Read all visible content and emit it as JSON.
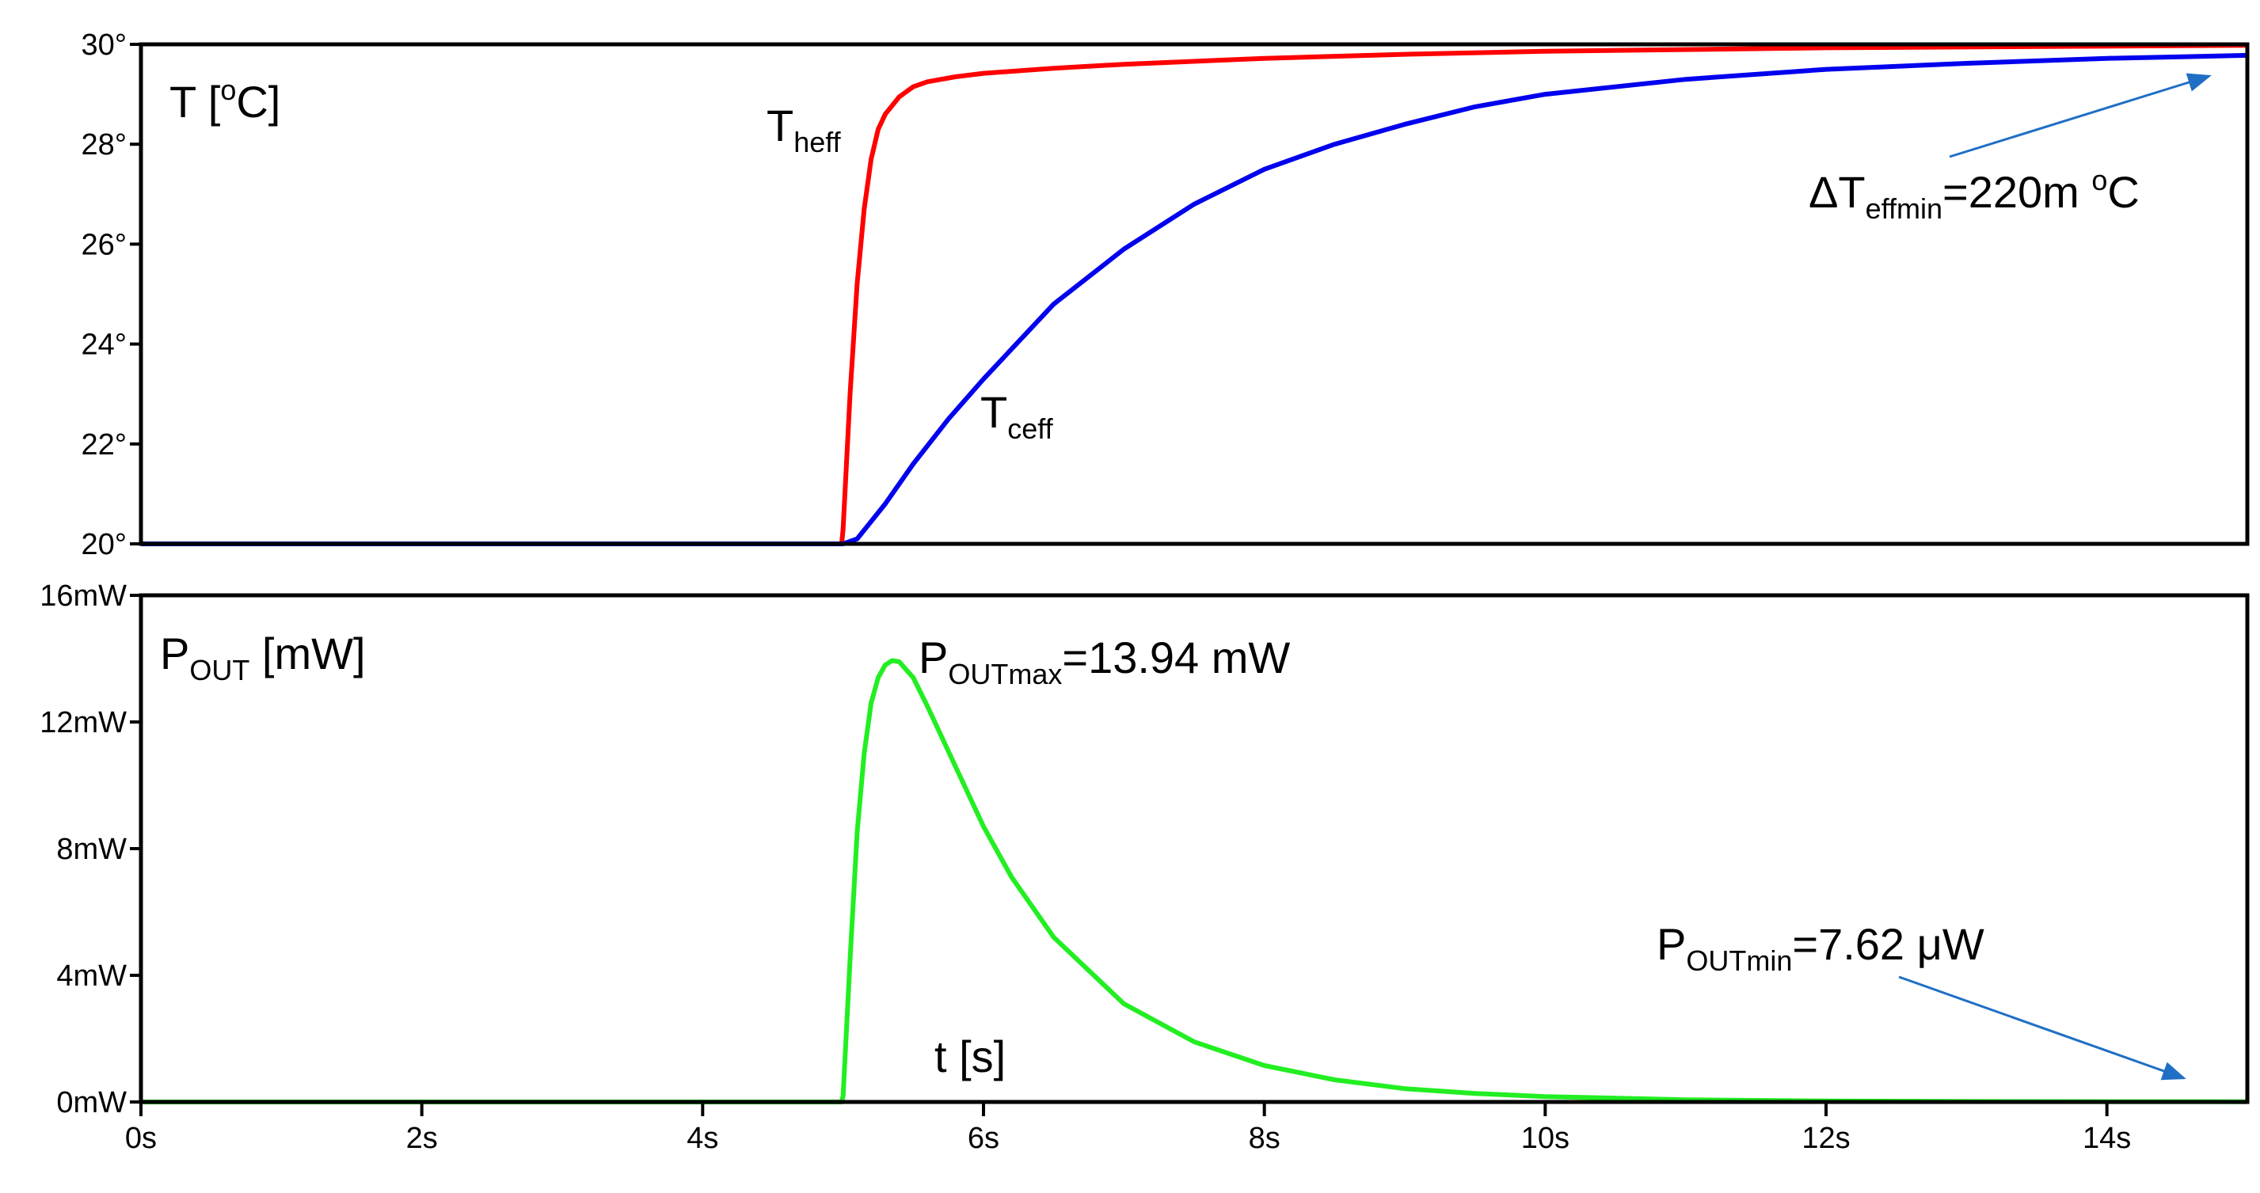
{
  "chart_data": [
    {
      "type": "line",
      "panel": "top",
      "ylabel_main": "T [",
      "ylabel_sup": "o",
      "ylabel_end": "C]",
      "ylim": [
        20,
        30
      ],
      "xlim": [
        0,
        15
      ],
      "y_ticks": [
        20,
        22,
        24,
        26,
        28,
        30
      ],
      "y_tick_labels": [
        "20°",
        "22°",
        "24°",
        "26°",
        "28°",
        "30°"
      ],
      "series": [
        {
          "name": "Theff",
          "label_main": "T",
          "label_sub": "heff",
          "color": "#ff0000",
          "x": [
            0,
            4.99,
            5.0,
            5.05,
            5.1,
            5.15,
            5.2,
            5.25,
            5.3,
            5.4,
            5.5,
            5.6,
            5.8,
            6.0,
            6.5,
            7.0,
            8.0,
            9.0,
            10.0,
            12.0,
            15.0
          ],
          "y": [
            20,
            20,
            20.3,
            23.0,
            25.2,
            26.7,
            27.7,
            28.3,
            28.6,
            28.95,
            29.15,
            29.25,
            29.35,
            29.42,
            29.52,
            29.6,
            29.72,
            29.8,
            29.86,
            29.93,
            29.98
          ]
        },
        {
          "name": "Tceff",
          "label_main": "T",
          "label_sub": "ceff",
          "color": "#0000ee",
          "x": [
            0,
            5.0,
            5.1,
            5.3,
            5.5,
            5.75,
            6.0,
            6.5,
            7.0,
            7.5,
            8.0,
            8.5,
            9.0,
            9.5,
            10.0,
            11.0,
            12.0,
            13.0,
            14.0,
            15.0
          ],
          "y": [
            20,
            20,
            20.1,
            20.8,
            21.6,
            22.5,
            23.3,
            24.8,
            25.9,
            26.8,
            27.5,
            28.0,
            28.4,
            28.75,
            29.0,
            29.3,
            29.5,
            29.62,
            29.72,
            29.78
          ]
        }
      ],
      "annotations": [
        {
          "main": "ΔT",
          "sub": "effmin",
          "end": "=220m ",
          "sup": "o",
          "tail": "C"
        }
      ]
    },
    {
      "type": "line",
      "panel": "bottom",
      "ylabel_main": "P",
      "ylabel_sub": "OUT",
      "ylabel_end": " [mW]",
      "ylim": [
        0,
        16
      ],
      "xlim": [
        0,
        15
      ],
      "y_ticks": [
        0,
        4,
        8,
        12,
        16
      ],
      "y_tick_labels": [
        "0mW",
        "4mW",
        "8mW",
        "12mW",
        "16mW"
      ],
      "x_ticks": [
        0,
        2,
        4,
        6,
        8,
        10,
        12,
        14
      ],
      "x_tick_labels": [
        "0s",
        "2s",
        "4s",
        "6s",
        "8s",
        "10s",
        "12s",
        "14s"
      ],
      "xlabel": "t [s]",
      "series": [
        {
          "name": "POUT",
          "color": "#22ee22",
          "x": [
            0,
            4.99,
            5.0,
            5.05,
            5.1,
            5.15,
            5.2,
            5.25,
            5.3,
            5.35,
            5.4,
            5.5,
            5.6,
            5.8,
            6.0,
            6.2,
            6.5,
            7.0,
            7.5,
            8.0,
            8.5,
            9.0,
            9.5,
            10.0,
            11.0,
            12.0,
            13.0,
            14.0,
            15.0
          ],
          "y": [
            0,
            0,
            0.2,
            4.5,
            8.5,
            11.0,
            12.6,
            13.4,
            13.8,
            13.94,
            13.9,
            13.4,
            12.5,
            10.6,
            8.7,
            7.1,
            5.2,
            3.1,
            1.9,
            1.15,
            0.7,
            0.42,
            0.27,
            0.17,
            0.07,
            0.03,
            0.015,
            0.009,
            0.0076
          ]
        }
      ],
      "annotations": [
        {
          "main": "P",
          "sub": "OUTmax",
          "end": "=13.94 mW"
        },
        {
          "main": "P",
          "sub": "OUTmin",
          "end": "=7.62 μW"
        }
      ]
    }
  ],
  "colors": {
    "arrow": "#1f6fc5",
    "frame": "#000000"
  }
}
